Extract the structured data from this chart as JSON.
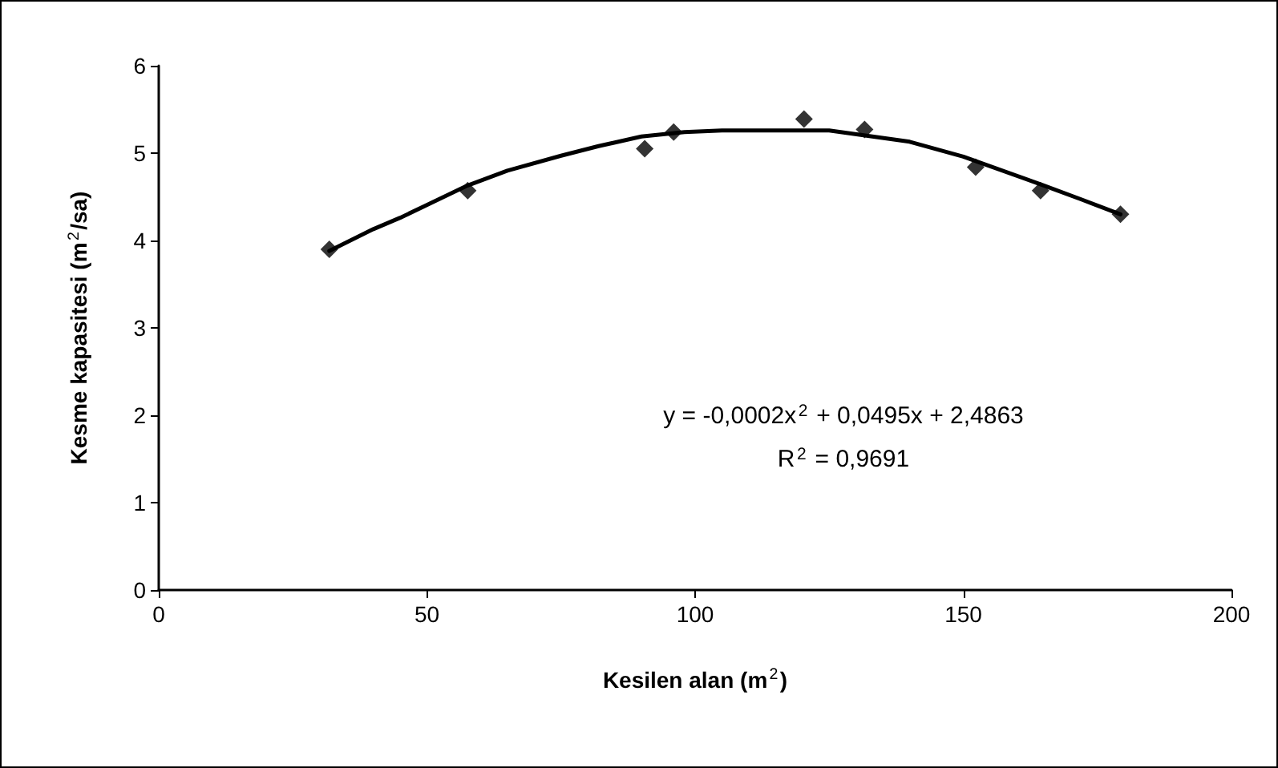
{
  "chart_data": {
    "type": "scatter",
    "xlabel": "Kesilen alan (m$^{2}$)",
    "ylabel": "Kesme kapasitesi (m$^{2}$/sa)",
    "xlim": [
      0,
      200
    ],
    "xticks": [
      0,
      50,
      100,
      150,
      200
    ],
    "ylim": [
      0,
      6
    ],
    "yticks": [
      0,
      1,
      2,
      3,
      4,
      5,
      6
    ],
    "grid": false,
    "marker": "diamond",
    "annotations": [
      "y = -0,0002x$^{2}$ + 0,0495x + 2,4863",
      "R$^{2}$ = 0,9691"
    ],
    "series": [
      {
        "color": "#000000",
        "x": [
          31.8,
          57.6,
          90.6,
          96.0,
          120.3,
          131.6,
          152.3,
          164.4,
          179.3
        ],
        "values": [
          3.9,
          4.57,
          5.05,
          5.24,
          5.39,
          5.27,
          4.84,
          4.57,
          4.3
        ]
      },
      {
        "type": "line",
        "color": "#000000",
        "marker": "none",
        "line_style": "solid",
        "x": [
          31.8,
          40,
          45,
          57.6,
          65,
          75,
          82,
          90,
          98,
          105,
          125,
          140,
          150,
          165,
          172,
          179.3
        ],
        "values": [
          3.88,
          4.13,
          4.26,
          4.63,
          4.8,
          4.97,
          5.08,
          5.19,
          5.24,
          5.26,
          5.26,
          5.13,
          4.96,
          4.63,
          4.47,
          4.3
        ]
      }
    ]
  }
}
